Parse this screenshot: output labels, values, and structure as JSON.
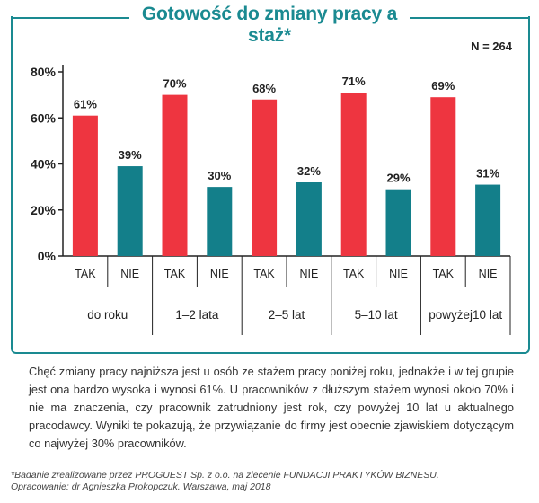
{
  "title": "Gotowość do zmiany pracy a staż*",
  "n_label": "N = 264",
  "chart_data": {
    "type": "bar",
    "categories": [
      "do roku",
      "1–2 lata",
      "2–5 lat",
      "5–10 lat",
      "powyżej10 lat"
    ],
    "sub_labels": [
      "TAK",
      "NIE"
    ],
    "series": [
      {
        "name": "TAK",
        "color": "#ee3540",
        "values": [
          61,
          70,
          68,
          71,
          69
        ]
      },
      {
        "name": "NIE",
        "color": "#137f8a",
        "values": [
          39,
          30,
          32,
          29,
          31
        ]
      }
    ],
    "ylim": [
      0,
      80
    ],
    "yticks": [
      0,
      20,
      40,
      60,
      80
    ],
    "ytick_labels": [
      "0%",
      "20%",
      "40%",
      "60%",
      "80%"
    ],
    "value_suffix": "%",
    "grid": false
  },
  "note": "Chęć zmiany pracy najniższa jest u osób ze stażem pracy poniżej roku, jednakże i w tej grupie jest ona bardzo wysoka i wynosi 61%. U pracowników z dłuższym stażem wynosi około 70% i nie ma znaczenia, czy pracownik zatrudniony jest rok, czy powyżej 10 lat u aktualnego pracodawcy. Wyniki te pokazują, że przywiązanie do firmy jest obecnie zjawiskiem dotyczącym co najwyżej 30% pracowników.",
  "footnote_1": "*Badanie zrealizowane przez PROGUEST Sp. z o.o. na zlecenie FUNDACJI PRAKTYKÓW BIZNESU.",
  "footnote_2": "Opracowanie: dr Agnieszka Prokopczuk. Warszawa, maj 2018"
}
